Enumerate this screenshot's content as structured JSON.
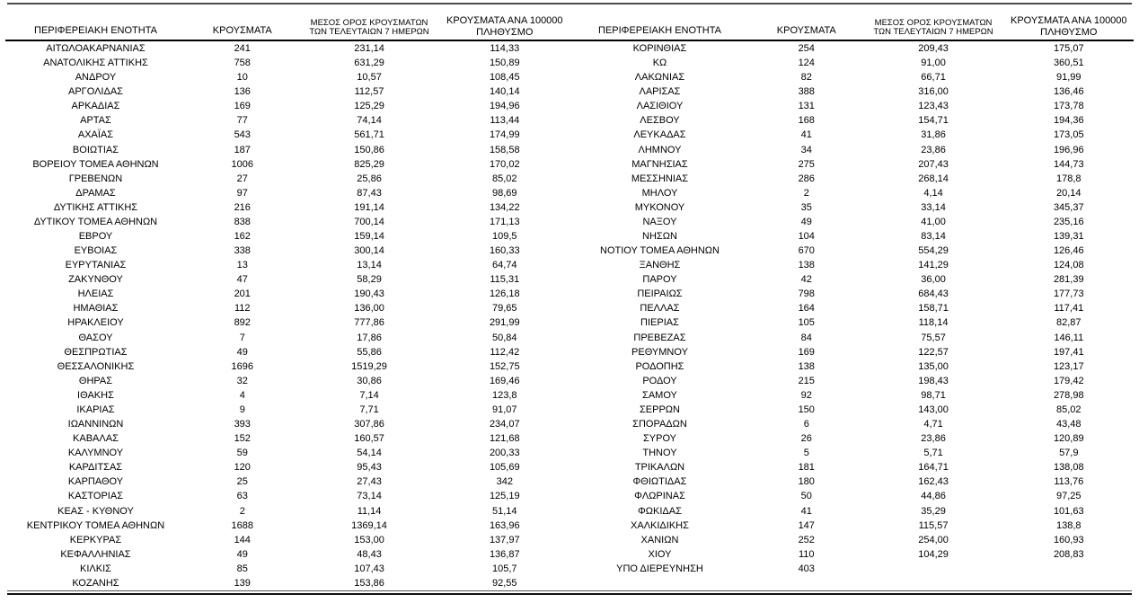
{
  "table": {
    "headers": {
      "region": "ΠΕΡΙΦΕΡΕΙΑΚΗ ΕΝΟΤΗΤΑ",
      "cases": "ΚΡΟΥΣΜΑΤΑ",
      "avg7_line1": "ΜΕΣΟΣ ΟΡΟΣ ΚΡΟΥΣΜΑΤΩΝ",
      "avg7_line2": "ΤΩΝ ΤΕΛΕΥΤΑΙΩΝ 7 ΗΜΕΡΩΝ",
      "per100k_line1": "ΚΡΟΥΣΜΑΤΑ ΑΝΑ 100000",
      "per100k_line2": "ΠΛΗΘΥΣΜΟ"
    },
    "left_rows": [
      [
        "ΑΙΤΩΛΟΑΚΑΡΝΑΝΙΑΣ",
        "241",
        "231,14",
        "114,33"
      ],
      [
        "ΑΝΑΤΟΛΙΚΗΣ ΑΤΤΙΚΗΣ",
        "758",
        "631,29",
        "150,89"
      ],
      [
        "ΑΝΔΡΟΥ",
        "10",
        "10,57",
        "108,45"
      ],
      [
        "ΑΡΓΟΛΙΔΑΣ",
        "136",
        "112,57",
        "140,14"
      ],
      [
        "ΑΡΚΑΔΙΑΣ",
        "169",
        "125,29",
        "194,96"
      ],
      [
        "ΑΡΤΑΣ",
        "77",
        "74,14",
        "113,44"
      ],
      [
        "ΑΧΑΪΑΣ",
        "543",
        "561,71",
        "174,99"
      ],
      [
        "ΒΟΙΩΤΙΑΣ",
        "187",
        "150,86",
        "158,58"
      ],
      [
        "ΒΟΡΕΙΟΥ ΤΟΜΕΑ ΑΘΗΝΩΝ",
        "1006",
        "825,29",
        "170,02"
      ],
      [
        "ΓΡΕΒΕΝΩΝ",
        "27",
        "25,86",
        "85,02"
      ],
      [
        "ΔΡΑΜΑΣ",
        "97",
        "87,43",
        "98,69"
      ],
      [
        "ΔΥΤΙΚΗΣ ΑΤΤΙΚΗΣ",
        "216",
        "191,14",
        "134,22"
      ],
      [
        "ΔΥΤΙΚΟΥ ΤΟΜΕΑ ΑΘΗΝΩΝ",
        "838",
        "700,14",
        "171,13"
      ],
      [
        "ΕΒΡΟΥ",
        "162",
        "159,14",
        "109,5"
      ],
      [
        "ΕΥΒΟΙΑΣ",
        "338",
        "300,14",
        "160,33"
      ],
      [
        "ΕΥΡΥΤΑΝΙΑΣ",
        "13",
        "13,14",
        "64,74"
      ],
      [
        "ΖΑΚΥΝΘΟΥ",
        "47",
        "58,29",
        "115,31"
      ],
      [
        "ΗΛΕΙΑΣ",
        "201",
        "190,43",
        "126,18"
      ],
      [
        "ΗΜΑΘΙΑΣ",
        "112",
        "136,00",
        "79,65"
      ],
      [
        "ΗΡΑΚΛΕΙΟΥ",
        "892",
        "777,86",
        "291,99"
      ],
      [
        "ΘΑΣΟΥ",
        "7",
        "17,86",
        "50,84"
      ],
      [
        "ΘΕΣΠΡΩΤΙΑΣ",
        "49",
        "55,86",
        "112,42"
      ],
      [
        "ΘΕΣΣΑΛΟΝΙΚΗΣ",
        "1696",
        "1519,29",
        "152,75"
      ],
      [
        "ΘΗΡΑΣ",
        "32",
        "30,86",
        "169,46"
      ],
      [
        "ΙΘΑΚΗΣ",
        "4",
        "7,14",
        "123,8"
      ],
      [
        "ΙΚΑΡΙΑΣ",
        "9",
        "7,71",
        "91,07"
      ],
      [
        "ΙΩΑΝΝΙΝΩΝ",
        "393",
        "307,86",
        "234,07"
      ],
      [
        "ΚΑΒΑΛΑΣ",
        "152",
        "160,57",
        "121,68"
      ],
      [
        "ΚΑΛΥΜΝΟΥ",
        "59",
        "54,14",
        "200,33"
      ],
      [
        "ΚΑΡΔΙΤΣΑΣ",
        "120",
        "95,43",
        "105,69"
      ],
      [
        "ΚΑΡΠΑΘΟΥ",
        "25",
        "27,43",
        "342"
      ],
      [
        "ΚΑΣΤΟΡΙΑΣ",
        "63",
        "73,14",
        "125,19"
      ],
      [
        "ΚΕΑΣ - ΚΥΘΝΟΥ",
        "2",
        "11,14",
        "51,14"
      ],
      [
        "ΚΕΝΤΡΙΚΟΥ ΤΟΜΕΑ ΑΘΗΝΩΝ",
        "1688",
        "1369,14",
        "163,96"
      ],
      [
        "ΚΕΡΚΥΡΑΣ",
        "144",
        "153,00",
        "137,97"
      ],
      [
        "ΚΕΦΑΛΛΗΝΙΑΣ",
        "49",
        "48,43",
        "136,87"
      ],
      [
        "ΚΙΛΚΙΣ",
        "85",
        "107,43",
        "105,7"
      ],
      [
        "ΚΟΖΑΝΗΣ",
        "139",
        "153,86",
        "92,55"
      ]
    ],
    "right_rows": [
      [
        "ΚΟΡΙΝΘΙΑΣ",
        "254",
        "209,43",
        "175,07"
      ],
      [
        "ΚΩ",
        "124",
        "91,00",
        "360,51"
      ],
      [
        "ΛΑΚΩΝΙΑΣ",
        "82",
        "66,71",
        "91,99"
      ],
      [
        "ΛΑΡΙΣΑΣ",
        "388",
        "316,00",
        "136,46"
      ],
      [
        "ΛΑΣΙΘΙΟΥ",
        "131",
        "123,43",
        "173,78"
      ],
      [
        "ΛΕΣΒΟΥ",
        "168",
        "154,71",
        "194,36"
      ],
      [
        "ΛΕΥΚΑΔΑΣ",
        "41",
        "31,86",
        "173,05"
      ],
      [
        "ΛΗΜΝΟΥ",
        "34",
        "23,86",
        "196,96"
      ],
      [
        "ΜΑΓΝΗΣΙΑΣ",
        "275",
        "207,43",
        "144,73"
      ],
      [
        "ΜΕΣΣΗΝΙΑΣ",
        "286",
        "268,14",
        "178,8"
      ],
      [
        "ΜΗΛΟΥ",
        "2",
        "4,14",
        "20,14"
      ],
      [
        "ΜΥΚΟΝΟΥ",
        "35",
        "33,14",
        "345,37"
      ],
      [
        "ΝΑΞΟΥ",
        "49",
        "41,00",
        "235,16"
      ],
      [
        "ΝΗΣΩΝ",
        "104",
        "83,14",
        "139,31"
      ],
      [
        "ΝΟΤΙΟΥ ΤΟΜΕΑ ΑΘΗΝΩΝ",
        "670",
        "554,29",
        "126,46"
      ],
      [
        "ΞΑΝΘΗΣ",
        "138",
        "141,29",
        "124,08"
      ],
      [
        "ΠΑΡΟΥ",
        "42",
        "36,00",
        "281,39"
      ],
      [
        "ΠΕΙΡΑΙΩΣ",
        "798",
        "684,43",
        "177,73"
      ],
      [
        "ΠΕΛΛΑΣ",
        "164",
        "158,71",
        "117,41"
      ],
      [
        "ΠΙΕΡΙΑΣ",
        "105",
        "118,14",
        "82,87"
      ],
      [
        "ΠΡΕΒΕΖΑΣ",
        "84",
        "75,57",
        "146,11"
      ],
      [
        "ΡΕΘΥΜΝΟΥ",
        "169",
        "122,57",
        "197,41"
      ],
      [
        "ΡΟΔΟΠΗΣ",
        "138",
        "135,00",
        "123,17"
      ],
      [
        "ΡΟΔΟΥ",
        "215",
        "198,43",
        "179,42"
      ],
      [
        "ΣΑΜΟΥ",
        "92",
        "98,71",
        "278,98"
      ],
      [
        "ΣΕΡΡΩΝ",
        "150",
        "143,00",
        "85,02"
      ],
      [
        "ΣΠΟΡΑΔΩΝ",
        "6",
        "4,71",
        "43,48"
      ],
      [
        "ΣΥΡΟΥ",
        "26",
        "23,86",
        "120,89"
      ],
      [
        "ΤΗΝΟΥ",
        "5",
        "5,71",
        "57,9"
      ],
      [
        "ΤΡΙΚΑΛΩΝ",
        "181",
        "164,71",
        "138,08"
      ],
      [
        "ΦΘΙΩΤΙΔΑΣ",
        "180",
        "162,43",
        "113,76"
      ],
      [
        "ΦΛΩΡΙΝΑΣ",
        "50",
        "44,86",
        "97,25"
      ],
      [
        "ΦΩΚΙΔΑΣ",
        "41",
        "35,29",
        "101,63"
      ],
      [
        "ΧΑΛΚΙΔΙΚΗΣ",
        "147",
        "115,57",
        "138,8"
      ],
      [
        "ΧΑΝΙΩΝ",
        "252",
        "254,00",
        "160,93"
      ],
      [
        "ΧΙΟΥ",
        "110",
        "104,29",
        "208,83"
      ],
      [
        "ΥΠΟ ΔΙΕΡΕΥΝΗΣΗ",
        "403",
        "",
        ""
      ]
    ]
  },
  "colors": {
    "background": "#ffffff",
    "text": "#000000",
    "header_rule": "#000000",
    "top_rule": "#4a4a4a",
    "bottom_rule": "#111111"
  }
}
